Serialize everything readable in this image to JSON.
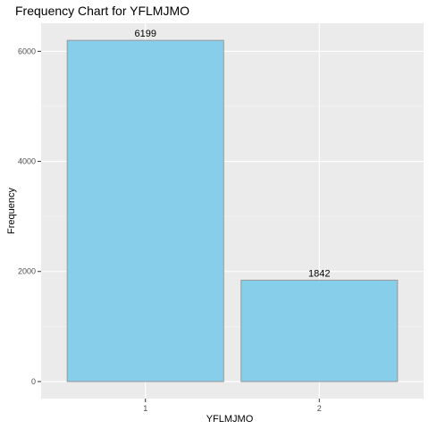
{
  "chart_data": {
    "type": "bar",
    "title": "Frequency Chart for YFLMJMO",
    "xlabel": "YFLMJMO",
    "ylabel": "Frequency",
    "categories": [
      "1",
      "2"
    ],
    "values": [
      6199,
      1842
    ],
    "data_labels": [
      "6199",
      "1842"
    ],
    "ylim": [
      -310,
      6510
    ],
    "yticks": [
      0,
      2000,
      4000,
      6000
    ],
    "ytick_labels": [
      "0",
      "2000",
      "4000",
      "6000"
    ],
    "grid": true,
    "legend": "none",
    "colors": {
      "panel_background": "#ebebeb",
      "grid_major": "#ffffff",
      "grid_minor": "#f5f5f5",
      "bar_fill": "#87ceeb",
      "bar_outline": "#999999",
      "tick": "#333333"
    }
  }
}
